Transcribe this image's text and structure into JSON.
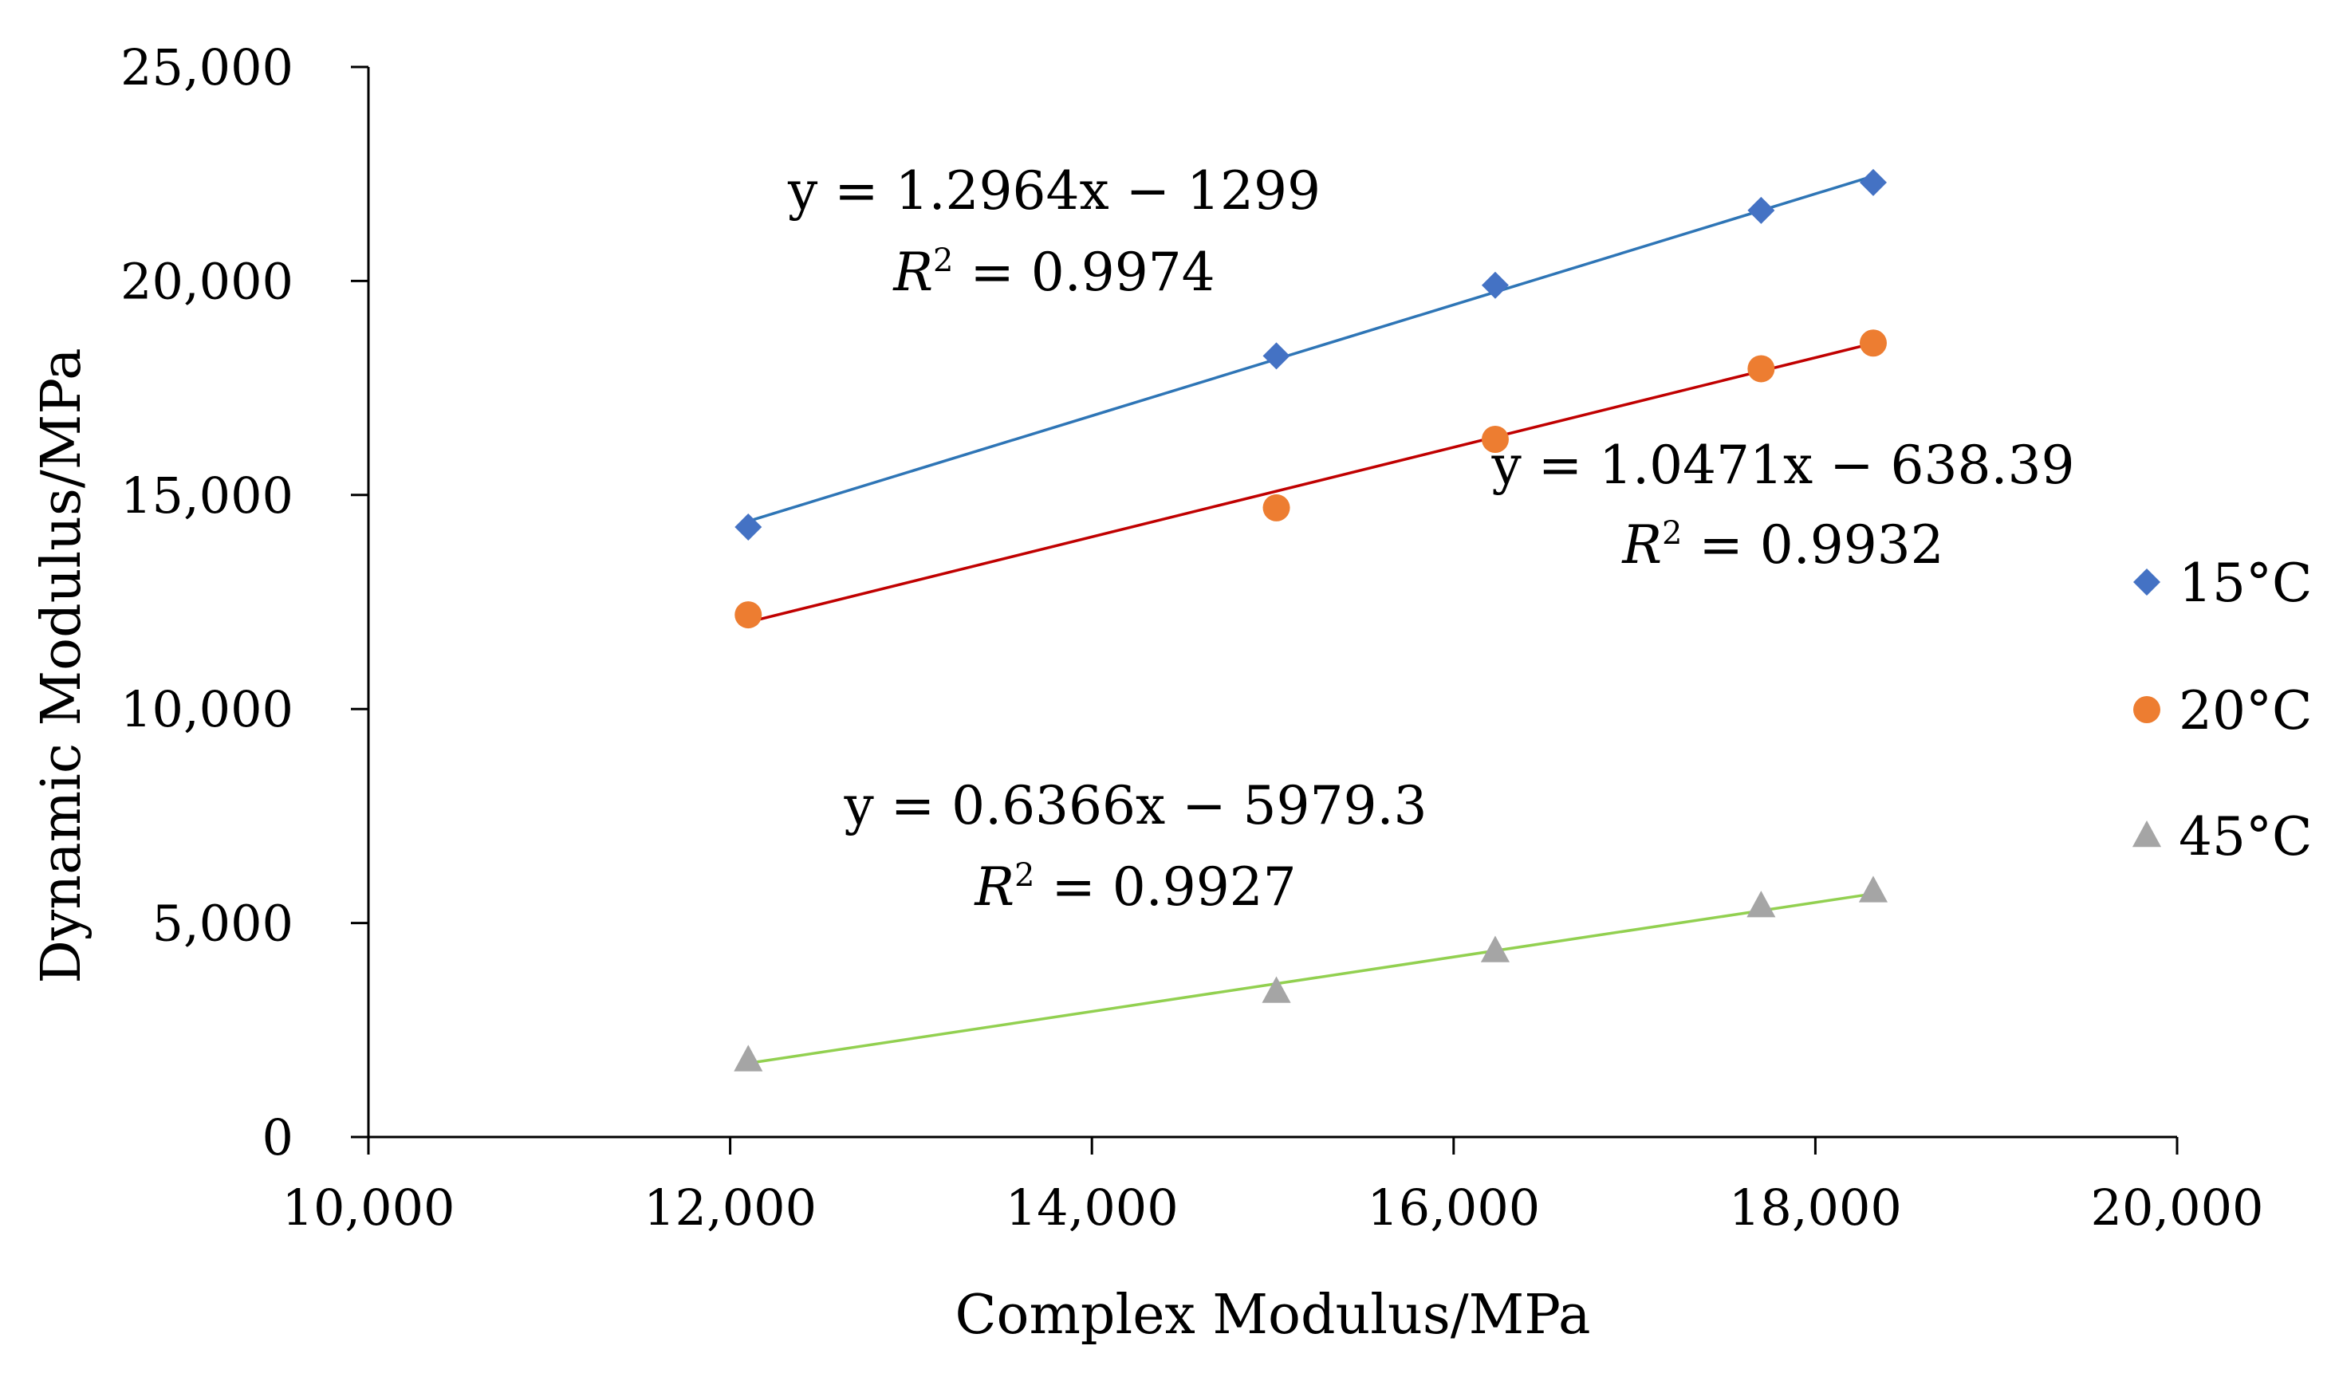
{
  "chart_data": {
    "type": "scatter",
    "title": "",
    "xlabel": "Complex Modulus/MPa",
    "ylabel": "Dynamic Modulus/MPa",
    "xlim": [
      10000,
      20000
    ],
    "ylim": [
      0,
      25000
    ],
    "x_ticks": [
      10000,
      12000,
      14000,
      16000,
      18000,
      20000
    ],
    "x_tick_labels": [
      "10,000",
      "12,000",
      "14,000",
      "16,000",
      "18,000",
      "20,000"
    ],
    "y_ticks": [
      0,
      5000,
      10000,
      15000,
      20000,
      25000
    ],
    "y_tick_labels": [
      "0",
      "5,000",
      "10,000",
      "15,000",
      "20,000",
      "25,000"
    ],
    "grid": false,
    "legend_position": "right",
    "series": [
      {
        "name": "15°C",
        "marker": "diamond",
        "color": "#4472C4",
        "trend_color": "#2E75B6",
        "x": [
          12100,
          15020,
          16230,
          17700,
          18320
        ],
        "y": [
          14250,
          18250,
          19900,
          21650,
          22300
        ],
        "trendline": {
          "slope": 1.2964,
          "intercept": -1299,
          "x_range": [
            12100,
            18320
          ]
        },
        "equation": {
          "line": "y = 1.2964x − 1299",
          "r2_symbol": "R",
          "r2_sup": "2",
          "r2_value": " = 0.9974"
        }
      },
      {
        "name": "20°C",
        "marker": "circle",
        "color": "#ED7D31",
        "trend_color": "#C00000",
        "x": [
          12100,
          15020,
          16230,
          17700,
          18320
        ],
        "y": [
          12200,
          14700,
          16300,
          17950,
          18550
        ],
        "trendline": {
          "slope": 1.0471,
          "intercept": -638.39,
          "x_range": [
            12100,
            18320
          ]
        },
        "equation": {
          "line": "y = 1.0471x − 638.39",
          "r2_symbol": "R",
          "r2_sup": "2",
          "r2_value": " = 0.9932"
        }
      },
      {
        "name": "45°C",
        "marker": "triangle",
        "color": "#A5A5A5",
        "trend_color": "#92D050",
        "x": [
          12100,
          15020,
          16230,
          17700,
          18320
        ],
        "y": [
          1800,
          3400,
          4350,
          5400,
          5750
        ],
        "trendline": {
          "slope": 0.6366,
          "intercept": -5979.3,
          "x_range": [
            12100,
            18320
          ]
        },
        "equation": {
          "line": "y = 0.6366x − 5979.3",
          "r2_symbol": "R",
          "r2_sup": "2",
          "r2_value": " = 0.9927"
        }
      }
    ]
  }
}
